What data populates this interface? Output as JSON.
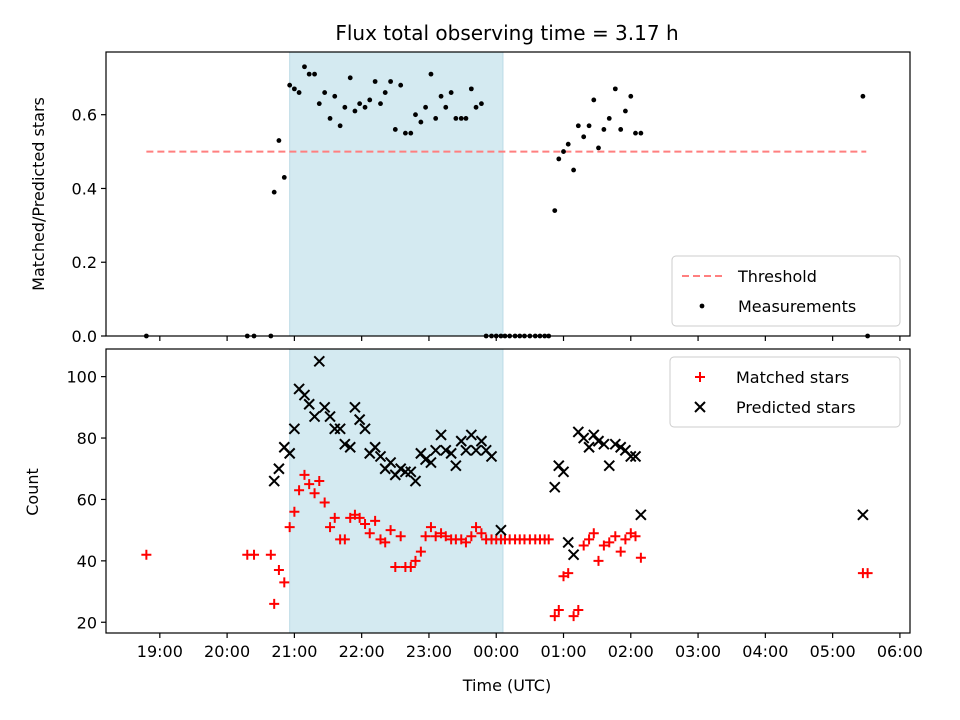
{
  "chart_data": {
    "title": "Flux total observing time = 3.17 h",
    "x_axis": {
      "label": "Time (UTC)",
      "range_hours": [
        18.2,
        30.15
      ],
      "tick_values_hours": [
        19,
        20,
        21,
        22,
        23,
        24,
        25,
        26,
        27,
        28,
        29,
        30
      ],
      "tick_labels": [
        "19:00",
        "20:00",
        "21:00",
        "22:00",
        "23:00",
        "00:00",
        "01:00",
        "02:00",
        "03:00",
        "04:00",
        "05:00",
        "06:00"
      ],
      "note": "hours after midnight of the first night; values above 24 fall on the next day"
    },
    "shaded_interval_hours": [
      20.93,
      24.1
    ],
    "panels": [
      {
        "type": "scatter",
        "ylabel": "Matched/Predicted stars",
        "ylim": [
          0,
          0.77
        ],
        "yticks": [
          0.0,
          0.2,
          0.4,
          0.6
        ],
        "ytick_labels": [
          "0.0",
          "0.2",
          "0.4",
          "0.6"
        ],
        "legend_position": "lower-right",
        "threshold": {
          "name": "Threshold",
          "value": 0.5,
          "x_range_hours": [
            18.8,
            29.5
          ],
          "color": "#ff7f7f",
          "style": "dashed"
        },
        "series": [
          {
            "name": "Measurements",
            "marker": "dot",
            "color": "#000000",
            "x": [
              18.8,
              20.3,
              20.4,
              20.65,
              20.7,
              20.77,
              20.85,
              20.93,
              21.0,
              21.07,
              21.15,
              21.22,
              21.3,
              21.37,
              21.45,
              21.53,
              21.6,
              21.68,
              21.75,
              21.83,
              21.9,
              21.97,
              22.05,
              22.12,
              22.2,
              22.28,
              22.35,
              22.43,
              22.5,
              22.58,
              22.65,
              22.73,
              22.8,
              22.88,
              22.95,
              23.03,
              23.1,
              23.18,
              23.25,
              23.33,
              23.4,
              23.48,
              23.55,
              23.63,
              23.7,
              23.78,
              23.85,
              23.93,
              24.0,
              24.07,
              24.13,
              24.2,
              24.28,
              24.35,
              24.42,
              24.5,
              24.58,
              24.65,
              24.72,
              24.78,
              24.87,
              24.93,
              25.0,
              25.07,
              25.15,
              25.22,
              25.3,
              25.38,
              25.45,
              25.52,
              25.6,
              25.68,
              25.77,
              25.85,
              25.92,
              26.0,
              26.07,
              26.15,
              29.45,
              29.52
            ],
            "y": [
              0.0,
              0.0,
              0.0,
              0.0,
              0.39,
              0.53,
              0.43,
              0.68,
              0.67,
              0.66,
              0.73,
              0.71,
              0.71,
              0.63,
              0.66,
              0.59,
              0.65,
              0.57,
              0.62,
              0.7,
              0.61,
              0.63,
              0.62,
              0.64,
              0.69,
              0.63,
              0.66,
              0.69,
              0.56,
              0.68,
              0.55,
              0.55,
              0.6,
              0.58,
              0.62,
              0.71,
              0.59,
              0.65,
              0.62,
              0.66,
              0.59,
              0.59,
              0.59,
              0.67,
              0.62,
              0.63,
              0.0,
              0.0,
              0.0,
              0.0,
              0.0,
              0.0,
              0.0,
              0.0,
              0.0,
              0.0,
              0.0,
              0.0,
              0.0,
              0.0,
              0.34,
              0.48,
              0.5,
              0.52,
              0.45,
              0.57,
              0.54,
              0.57,
              0.64,
              0.51,
              0.56,
              0.59,
              0.67,
              0.56,
              0.61,
              0.65,
              0.55,
              0.55,
              0.65,
              0.0
            ]
          }
        ]
      },
      {
        "type": "scatter",
        "ylabel": "Count",
        "ylim": [
          16.5,
          109
        ],
        "yticks": [
          20,
          40,
          60,
          80,
          100
        ],
        "ytick_labels": [
          "20",
          "40",
          "60",
          "80",
          "100"
        ],
        "legend_position": "top-right",
        "series": [
          {
            "name": "Matched stars",
            "marker": "plus",
            "color": "#ff0000",
            "x": [
              18.8,
              20.3,
              20.4,
              20.65,
              20.7,
              20.77,
              20.85,
              20.93,
              21.0,
              21.07,
              21.15,
              21.22,
              21.3,
              21.37,
              21.45,
              21.53,
              21.6,
              21.68,
              21.75,
              21.83,
              21.9,
              21.97,
              22.05,
              22.12,
              22.2,
              22.28,
              22.35,
              22.43,
              22.5,
              22.58,
              22.65,
              22.73,
              22.8,
              22.88,
              22.95,
              23.03,
              23.1,
              23.18,
              23.25,
              23.33,
              23.4,
              23.48,
              23.55,
              23.63,
              23.7,
              23.78,
              23.85,
              23.93,
              24.0,
              24.07,
              24.13,
              24.2,
              24.28,
              24.35,
              24.42,
              24.5,
              24.58,
              24.65,
              24.72,
              24.78,
              24.87,
              24.93,
              25.0,
              25.07,
              25.15,
              25.22,
              25.3,
              25.38,
              25.45,
              25.52,
              25.6,
              25.68,
              25.77,
              25.85,
              25.92,
              26.0,
              26.07,
              26.15,
              29.45,
              29.52
            ],
            "y": [
              42,
              42,
              42,
              42,
              26,
              37,
              33,
              51,
              56,
              63,
              68,
              65,
              62,
              66,
              59,
              51,
              54,
              47,
              47,
              54,
              55,
              54,
              52,
              49,
              53,
              47,
              46,
              50,
              38,
              48,
              38,
              38,
              40,
              43,
              48,
              51,
              48,
              49,
              48,
              47,
              47,
              47,
              46,
              48,
              51,
              49,
              47,
              47,
              47,
              47,
              47,
              47,
              47,
              47,
              47,
              47,
              47,
              47,
              47,
              47,
              22,
              24,
              35,
              36,
              22,
              24,
              45,
              47,
              49,
              40,
              45,
              46,
              48,
              43,
              47,
              49,
              48,
              41,
              36,
              36
            ]
          },
          {
            "name": "Predicted stars",
            "marker": "x",
            "color": "#000000",
            "x": [
              20.7,
              20.77,
              20.85,
              20.93,
              21.0,
              21.07,
              21.15,
              21.22,
              21.3,
              21.37,
              21.45,
              21.53,
              21.6,
              21.68,
              21.75,
              21.83,
              21.9,
              21.97,
              22.05,
              22.12,
              22.2,
              22.28,
              22.35,
              22.43,
              22.5,
              22.58,
              22.65,
              22.73,
              22.8,
              22.88,
              22.95,
              23.03,
              23.1,
              23.18,
              23.25,
              23.33,
              23.4,
              23.48,
              23.55,
              23.63,
              23.7,
              23.78,
              23.85,
              23.93,
              24.07,
              24.87,
              24.93,
              25.0,
              25.07,
              25.15,
              25.22,
              25.3,
              25.38,
              25.45,
              25.52,
              25.6,
              25.68,
              25.77,
              25.85,
              25.92,
              26.0,
              26.07,
              26.15,
              29.45
            ],
            "y": [
              66,
              70,
              77,
              75,
              83,
              96,
              94,
              91,
              87,
              105,
              90,
              87,
              83,
              83,
              78,
              77,
              90,
              86,
              83,
              75,
              77,
              74,
              70,
              72,
              68,
              70,
              69,
              69,
              66,
              75,
              73,
              72,
              76,
              81,
              76,
              75,
              71,
              79,
              76,
              81,
              76,
              79,
              76,
              74,
              50,
              64,
              71,
              69,
              46,
              42,
              82,
              80,
              77,
              81,
              79,
              78,
              71,
              78,
              77,
              76,
              74,
              74,
              55,
              55
            ]
          }
        ]
      }
    ]
  }
}
